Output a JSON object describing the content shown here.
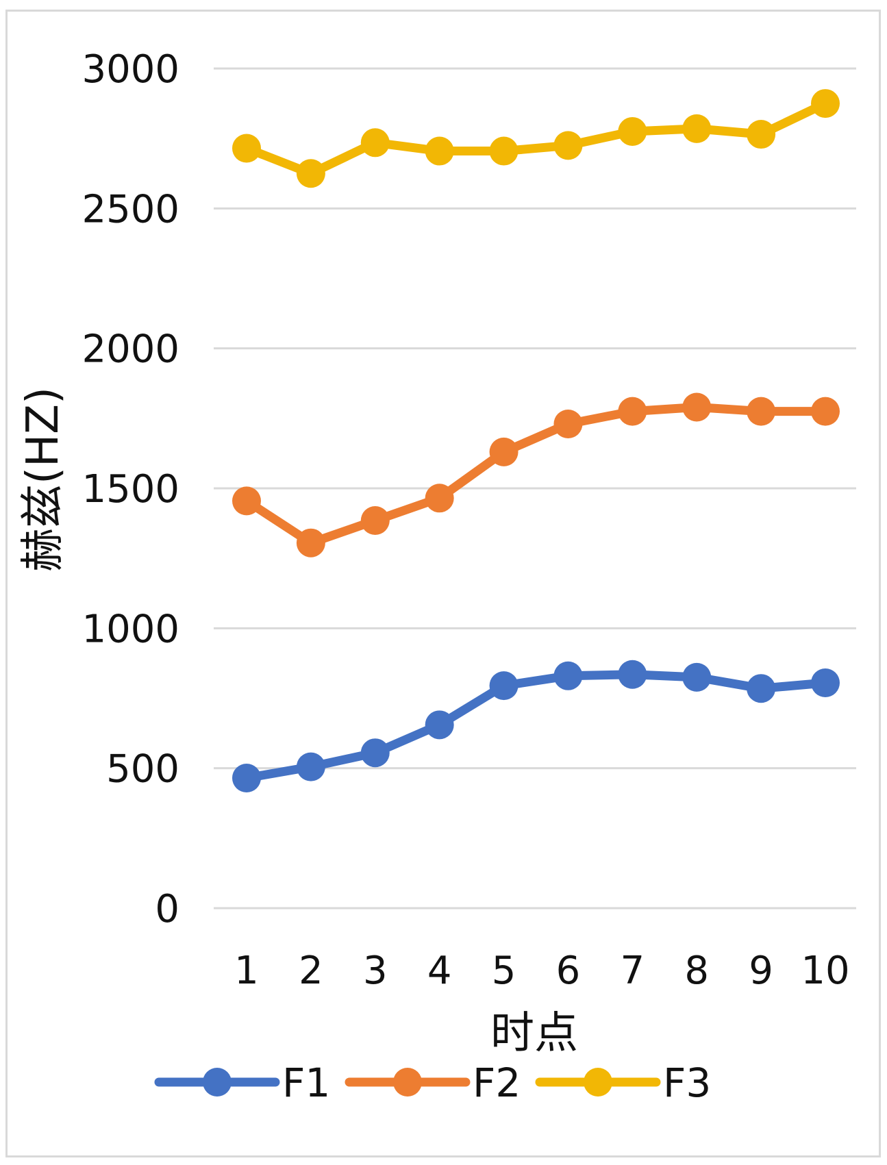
{
  "chart_data": {
    "type": "line",
    "title": "",
    "xlabel": "时点",
    "ylabel": "赫兹(HZ)",
    "categories": [
      "1",
      "2",
      "3",
      "4",
      "5",
      "6",
      "7",
      "8",
      "9",
      "10"
    ],
    "ylim": [
      0,
      3000
    ],
    "yticks": [
      "0",
      "500",
      "1000",
      "1500",
      "2000",
      "2500",
      "3000"
    ],
    "grid": true,
    "legend_position": "bottom",
    "series": [
      {
        "name": "F1",
        "color": "#4472C4",
        "values": [
          465,
          505,
          555,
          655,
          795,
          830,
          835,
          825,
          785,
          805
        ]
      },
      {
        "name": "F2",
        "color": "#ED7D31",
        "values": [
          1455,
          1305,
          1385,
          1465,
          1630,
          1730,
          1775,
          1790,
          1775,
          1775
        ]
      },
      {
        "name": "F3",
        "color": "#F2B705",
        "values": [
          2715,
          2625,
          2735,
          2705,
          2705,
          2725,
          2775,
          2785,
          2765,
          2875
        ]
      }
    ]
  }
}
